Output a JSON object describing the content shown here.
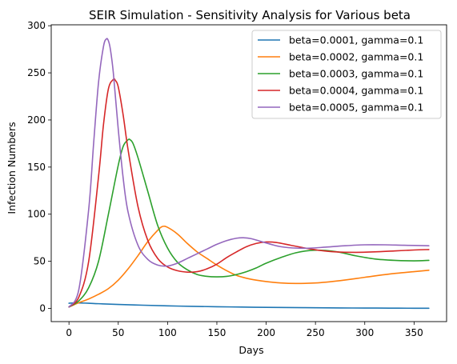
{
  "chart_data": {
    "type": "line",
    "title": "SEIR Simulation - Sensitivity Analysis for Various beta",
    "xlabel": "Days",
    "ylabel": "Infection Numbers",
    "xlim": [
      -18,
      383
    ],
    "ylim": [
      -14,
      301
    ],
    "xticks": [
      0,
      50,
      100,
      150,
      200,
      250,
      300,
      350
    ],
    "yticks": [
      0,
      50,
      100,
      150,
      200,
      250,
      300
    ],
    "grid": false,
    "legend_position": "top-right",
    "series": [
      {
        "name": "beta=0.0001, gamma=0.1",
        "color": "#1f77b4",
        "x": [
          0,
          5,
          10,
          20,
          30,
          50,
          75,
          100,
          125,
          150,
          175,
          200,
          225,
          250,
          275,
          300,
          325,
          350,
          365
        ],
        "y": [
          5.5,
          5.8,
          5.8,
          5.5,
          5.0,
          4.2,
          3.4,
          2.7,
          2.2,
          1.8,
          1.4,
          1.1,
          0.9,
          0.7,
          0.5,
          0.4,
          0.3,
          0.2,
          0.2
        ]
      },
      {
        "name": "beta=0.0002, gamma=0.1",
        "color": "#ff7f0e",
        "x": [
          0,
          10,
          20,
          30,
          40,
          50,
          60,
          70,
          80,
          90,
          95,
          100,
          110,
          120,
          130,
          140,
          150,
          160,
          170,
          180,
          190,
          200,
          215,
          230,
          250,
          275,
          300,
          325,
          350,
          365
        ],
        "y": [
          1.5,
          6,
          10,
          15,
          21,
          30,
          42,
          56,
          71,
          83,
          87,
          86,
          79,
          69,
          60,
          53,
          46,
          40,
          35,
          32,
          30,
          28.5,
          27,
          26.5,
          27,
          29.5,
          33,
          36.5,
          39,
          40.5
        ]
      },
      {
        "name": "beta=0.0003, gamma=0.1",
        "color": "#2ca02c",
        "x": [
          0,
          10,
          20,
          30,
          40,
          50,
          55,
          60,
          62,
          65,
          70,
          80,
          90,
          100,
          110,
          120,
          130,
          140,
          150,
          160,
          170,
          180,
          190,
          200,
          215,
          230,
          245,
          260,
          275,
          290,
          310,
          330,
          350,
          365
        ],
        "y": [
          1.5,
          8,
          22,
          50,
          100,
          152,
          172,
          179,
          179,
          175,
          160,
          124,
          88,
          64,
          49,
          41,
          36,
          34,
          33.5,
          34,
          36,
          39,
          43,
          48,
          54,
          59,
          61.5,
          61.5,
          59.5,
          56,
          52.5,
          51,
          50.5,
          51
        ]
      },
      {
        "name": "beta=0.0004, gamma=0.1",
        "color": "#d62728",
        "x": [
          0,
          10,
          20,
          30,
          35,
          40,
          45,
          47,
          50,
          55,
          60,
          70,
          80,
          90,
          100,
          110,
          120,
          130,
          140,
          150,
          160,
          170,
          180,
          190,
          200,
          210,
          225,
          240,
          255,
          270,
          290,
          310,
          330,
          350,
          365
        ],
        "y": [
          1.5,
          12,
          50,
          140,
          195,
          233,
          243,
          242,
          235,
          205,
          168,
          108,
          72,
          53,
          44,
          40,
          38.5,
          39,
          42,
          47,
          54,
          60,
          65.5,
          69,
          70.5,
          70,
          67,
          64,
          61.5,
          60,
          59.5,
          60,
          61,
          62,
          62.5
        ]
      },
      {
        "name": "beta=0.0005, gamma=0.1",
        "color": "#9467bd",
        "x": [
          0,
          10,
          20,
          25,
          30,
          35,
          38,
          40,
          42,
          45,
          50,
          55,
          60,
          70,
          80,
          90,
          100,
          110,
          120,
          130,
          140,
          150,
          160,
          170,
          177,
          185,
          195,
          205,
          215,
          230,
          245,
          260,
          280,
          300,
          320,
          340,
          365
        ],
        "y": [
          1.5,
          20,
          105,
          175,
          240,
          278,
          286,
          284,
          275,
          250,
          190,
          138,
          102,
          67,
          52,
          46,
          45,
          48,
          53,
          58,
          63,
          68,
          72,
          74.5,
          75,
          74,
          71,
          68,
          65.5,
          64,
          64,
          65,
          66.5,
          67.5,
          67.5,
          67,
          66.5
        ]
      }
    ]
  }
}
